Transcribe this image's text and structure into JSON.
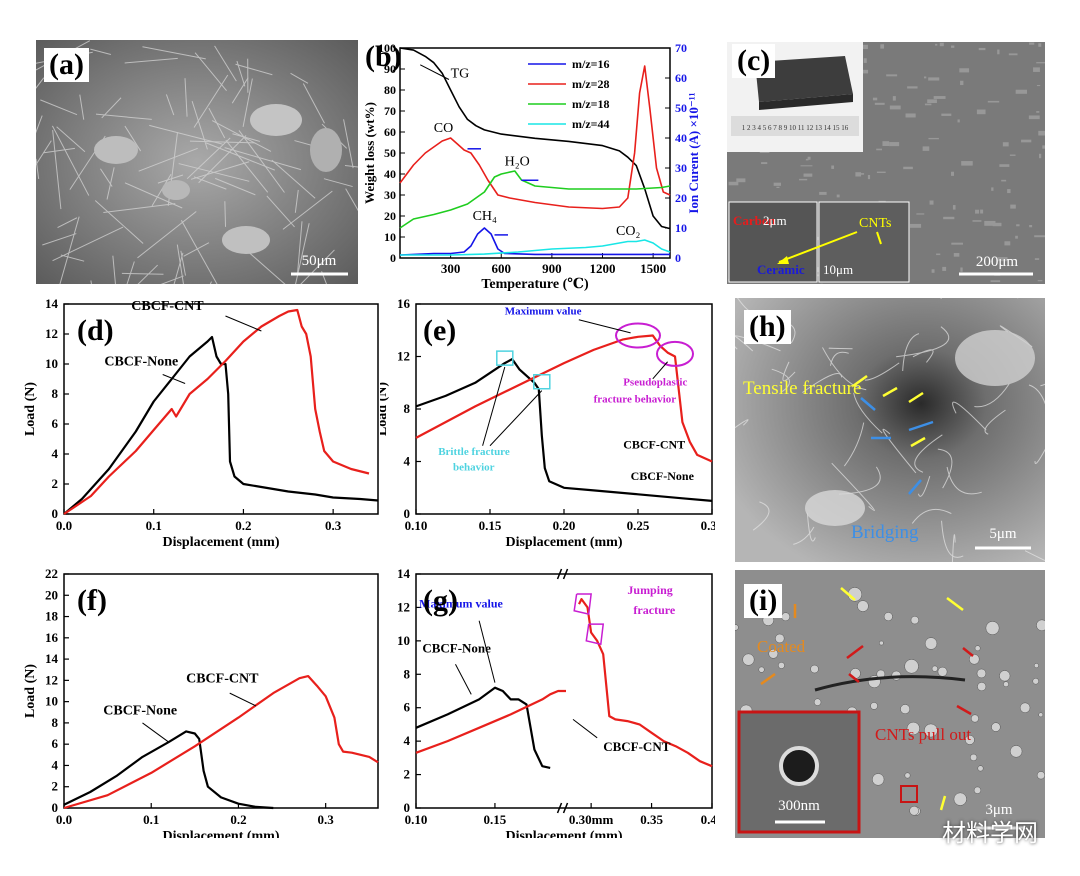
{
  "panels": {
    "a": {
      "label": "(a)",
      "scale": "50μm"
    },
    "b": {
      "label": "(b)"
    },
    "c": {
      "label": "(c)",
      "scale": "200μm",
      "inset_scale_1": "2μm",
      "inset_scale_2": "10μm",
      "ann_carbon": "Carbon",
      "ann_ceramic": "Ceramic",
      "ann_cnts": "CNTs",
      "ruler": "1 2 3 4 5 6 7 8 9 10 11 12 13 14 15 16"
    },
    "d": {
      "label": "(d)"
    },
    "e": {
      "label": "(e)"
    },
    "f": {
      "label": "(f)"
    },
    "g": {
      "label": "(g)"
    },
    "h": {
      "label": "(h)",
      "scale": "5μm",
      "ann_tensile": "Tensile fracture",
      "ann_bridging": "Bridging"
    },
    "i": {
      "label": "(i)",
      "scale": "3μm",
      "inset_scale": "300nm",
      "ann_coated": "Coated",
      "ann_pullout": "CNTs pull out"
    }
  },
  "watermark": "材料学网",
  "colors": {
    "black": "#000000",
    "red": "#e8201c",
    "blue": "#1515e8",
    "green": "#1fcd1f",
    "cyan": "#19e6e6",
    "magenta": "#c81ed2",
    "lightcyan": "#4fd3e0"
  },
  "chart_data": [
    {
      "id": "b",
      "type": "line",
      "xlabel": "Temperature (℃)",
      "ylabel": "Weight loss (wt%)",
      "y2label": "Ion Curent (A) ×10⁻¹¹",
      "xlim": [
        0,
        1600
      ],
      "ylim": [
        0,
        100
      ],
      "y2lim": [
        0,
        70
      ],
      "xticks": [
        300,
        600,
        900,
        1200,
        1500
      ],
      "yticks": [
        0,
        10,
        20,
        30,
        40,
        50,
        60,
        70,
        80,
        90,
        100
      ],
      "y2ticks": [
        0,
        10,
        20,
        30,
        40,
        50,
        60,
        70
      ],
      "legend": [
        "m/z=16",
        "m/z=28",
        "m/z=18",
        "m/z=44"
      ],
      "annotations": {
        "tg": "TG",
        "co": "CO",
        "h2o": "H₂O",
        "ch4": "CH₄",
        "co2": "CO₂"
      },
      "series": [
        {
          "name": "TG",
          "axis": "left",
          "color": "#000000",
          "x": [
            0,
            80,
            150,
            200,
            250,
            300,
            350,
            400,
            450,
            500,
            600,
            800,
            1000,
            1200,
            1300,
            1350,
            1400,
            1450,
            1500,
            1550,
            1600
          ],
          "y": [
            100,
            99,
            96,
            93,
            88,
            80,
            72,
            66,
            63,
            61,
            59,
            57,
            55.5,
            53.5,
            51,
            48,
            44,
            33,
            20,
            15,
            14
          ]
        },
        {
          "name": "m/z=16",
          "axis": "right",
          "color": "#1515e8",
          "x": [
            0,
            200,
            300,
            380,
            420,
            460,
            500,
            540,
            580,
            620,
            800,
            1000,
            1200,
            1400,
            1600
          ],
          "y": [
            1,
            1.5,
            1.5,
            2,
            4,
            8,
            10,
            8,
            3,
            1.5,
            1.2,
            1.2,
            1.2,
            1.2,
            1.2
          ]
        },
        {
          "name": "m/z=28",
          "axis": "right",
          "color": "#e8201c",
          "x": [
            0,
            80,
            150,
            250,
            300,
            340,
            380,
            420,
            470,
            520,
            580,
            650,
            800,
            1000,
            1200,
            1300,
            1350,
            1390,
            1420,
            1450,
            1480,
            1520,
            1560,
            1600
          ],
          "y": [
            25,
            31,
            35,
            39,
            40,
            38,
            36,
            35,
            31,
            26,
            21,
            20,
            18.5,
            17,
            16.5,
            17,
            20,
            35,
            55,
            64,
            50,
            30,
            22,
            21
          ]
        },
        {
          "name": "m/z=18",
          "axis": "right",
          "color": "#1fcd1f",
          "x": [
            0,
            80,
            200,
            300,
            400,
            500,
            560,
            600,
            640,
            680,
            720,
            800,
            1000,
            1200,
            1400,
            1550,
            1600
          ],
          "y": [
            10,
            13,
            14.5,
            16,
            18,
            22,
            27,
            28,
            28.5,
            29,
            26,
            24,
            23,
            23,
            23,
            23.5,
            24
          ]
        },
        {
          "name": "m/z=44",
          "axis": "right",
          "color": "#19e6e6",
          "x": [
            0,
            300,
            500,
            700,
            900,
            1100,
            1200,
            1300,
            1350,
            1400,
            1450,
            1500,
            1550,
            1600
          ],
          "y": [
            1,
            1,
            1.3,
            2,
            3,
            3.5,
            4,
            5,
            5.5,
            5.5,
            6,
            5,
            3,
            2
          ]
        }
      ]
    },
    {
      "id": "d",
      "type": "line",
      "xlabel": "Displacement (mm)",
      "ylabel": "Load (N)",
      "xlim": [
        0,
        0.35
      ],
      "ylim": [
        0,
        14
      ],
      "xticks": [
        0.0,
        0.1,
        0.2,
        0.3
      ],
      "yticks": [
        0,
        2,
        4,
        6,
        8,
        10,
        12,
        14
      ],
      "series_labels": {
        "cnt": "CBCF-CNT",
        "none": "CBCF-None"
      },
      "series": [
        {
          "name": "CBCF-None",
          "color": "#000000",
          "x": [
            0,
            0.02,
            0.05,
            0.08,
            0.1,
            0.12,
            0.14,
            0.16,
            0.165,
            0.17,
            0.175,
            0.18,
            0.183,
            0.185,
            0.19,
            0.2,
            0.22,
            0.25,
            0.28,
            0.3,
            0.33,
            0.35
          ],
          "y": [
            0,
            1,
            3,
            5.5,
            7.5,
            9,
            10.5,
            11.5,
            11.8,
            10.5,
            10,
            10,
            8,
            3.5,
            2.5,
            2,
            1.8,
            1.5,
            1.3,
            1.1,
            1.0,
            0.9
          ]
        },
        {
          "name": "CBCF-CNT",
          "color": "#e8201c",
          "x": [
            0,
            0.03,
            0.05,
            0.08,
            0.1,
            0.12,
            0.125,
            0.14,
            0.16,
            0.18,
            0.2,
            0.22,
            0.24,
            0.25,
            0.26,
            0.265,
            0.27,
            0.275,
            0.28,
            0.285,
            0.29,
            0.3,
            0.32,
            0.34
          ],
          "y": [
            0,
            1.2,
            2.5,
            4.2,
            5.6,
            7,
            6.5,
            8,
            9,
            10.2,
            11.5,
            12.5,
            13.2,
            13.5,
            13.6,
            12.5,
            12,
            10.5,
            7,
            5.5,
            4.2,
            3.5,
            3.0,
            2.7
          ]
        }
      ]
    },
    {
      "id": "e",
      "type": "line",
      "xlabel": "Displacement (mm)",
      "ylabel": "Load (N)",
      "xlim": [
        0.1,
        0.3
      ],
      "ylim": [
        0,
        16
      ],
      "xticks": [
        0.1,
        0.15,
        0.2,
        0.25,
        0.3
      ],
      "yticks": [
        0,
        4,
        8,
        12,
        16
      ],
      "annotations": {
        "max": "Maximum value",
        "pseudo": "Pseudoplastic fracture behavior",
        "brittle": "Brittle fracture behavior",
        "cnt": "CBCF-CNT",
        "none": "CBCF-None"
      },
      "series": [
        {
          "name": "CBCF-None",
          "color": "#000000",
          "x": [
            0.1,
            0.12,
            0.14,
            0.16,
            0.165,
            0.17,
            0.175,
            0.18,
            0.183,
            0.185,
            0.187,
            0.19,
            0.2,
            0.22,
            0.25,
            0.28,
            0.3
          ],
          "y": [
            8.2,
            9,
            10,
            11.5,
            11.8,
            11,
            10.5,
            10,
            9.5,
            6,
            3.5,
            2.5,
            2,
            1.8,
            1.5,
            1.2,
            1.0
          ]
        },
        {
          "name": "CBCF-CNT",
          "color": "#e8201c",
          "x": [
            0.1,
            0.12,
            0.14,
            0.16,
            0.18,
            0.2,
            0.22,
            0.24,
            0.25,
            0.26,
            0.265,
            0.27,
            0.275,
            0.28,
            0.285,
            0.29,
            0.3
          ],
          "y": [
            5.8,
            7,
            8.2,
            9.3,
            10.4,
            11.5,
            12.5,
            13.3,
            13.5,
            13.6,
            12.8,
            12.3,
            12,
            7,
            5.5,
            4.5,
            4.0
          ]
        }
      ]
    },
    {
      "id": "f",
      "type": "line",
      "xlabel": "Displacement (mm)",
      "ylabel": "Load (N)",
      "xlim": [
        0,
        0.36
      ],
      "ylim": [
        0,
        22
      ],
      "xticks": [
        0.0,
        0.1,
        0.2,
        0.3
      ],
      "yticks": [
        0,
        2,
        4,
        6,
        8,
        10,
        12,
        14,
        16,
        18,
        20,
        22
      ],
      "series_labels": {
        "cnt": "CBCF-CNT",
        "none": "CBCF-None"
      },
      "series": [
        {
          "name": "CBCF-None",
          "color": "#000000",
          "x": [
            0,
            0.03,
            0.06,
            0.09,
            0.12,
            0.14,
            0.15,
            0.155,
            0.16,
            0.165,
            0.18,
            0.2,
            0.22,
            0.24
          ],
          "y": [
            0.3,
            1.5,
            3,
            4.8,
            6.2,
            7.2,
            7,
            6.5,
            3.5,
            2,
            1,
            0.4,
            0.1,
            0
          ]
        },
        {
          "name": "CBCF-CNT",
          "color": "#e8201c",
          "x": [
            0,
            0.05,
            0.1,
            0.15,
            0.2,
            0.24,
            0.27,
            0.28,
            0.29,
            0.3,
            0.31,
            0.315,
            0.32,
            0.33,
            0.34,
            0.35,
            0.36
          ],
          "y": [
            0,
            1.2,
            3.3,
            5.8,
            8.5,
            10.8,
            12.2,
            12.4,
            11.5,
            10.5,
            8.5,
            6,
            5.3,
            5.2,
            5,
            4.8,
            4.3
          ]
        }
      ]
    },
    {
      "id": "g",
      "type": "line",
      "xlabel": "Displacement (mm)",
      "ylabel": "",
      "xlim": [
        0.1,
        0.4
      ],
      "ylim": [
        0,
        14
      ],
      "xticks": [
        0.1,
        0.15,
        0.3,
        0.35,
        0.4
      ],
      "xtick_labels": [
        "0.10",
        "0.15",
        "0.30mm",
        "0.35",
        "0.40"
      ],
      "yticks": [
        0,
        2,
        4,
        6,
        8,
        10,
        12,
        14
      ],
      "annotations": {
        "max": "Maximum value",
        "jump": "Jumping fracture",
        "cnt": "CBCF-CNT",
        "none": "CBCF-None"
      },
      "series": [
        {
          "name": "CBCF-None",
          "color": "#000000",
          "x": [
            0.1,
            0.12,
            0.14,
            0.15,
            0.155,
            0.16,
            0.165,
            0.17,
            0.175,
            0.18,
            0.185
          ],
          "y": [
            4.8,
            5.6,
            6.5,
            7.2,
            7.0,
            6.5,
            6.5,
            6.2,
            3.5,
            2.5,
            2.4
          ]
        },
        {
          "name": "CBCF-CNT",
          "color": "#e8201c",
          "x": [
            0.1,
            0.12,
            0.14,
            0.16,
            0.18,
            0.185,
            0.19,
            0.195,
            0.29,
            0.292,
            0.297,
            0.3,
            0.305,
            0.31,
            0.315,
            0.32,
            0.33,
            0.34,
            0.35,
            0.36,
            0.37,
            0.38,
            0.39,
            0.4
          ],
          "y": [
            3.3,
            4,
            4.8,
            5.6,
            6.5,
            6.8,
            7.0,
            7.0,
            12.2,
            12.5,
            12,
            10.5,
            10,
            9.2,
            5.5,
            5.3,
            5.2,
            5,
            4.5,
            4,
            3.7,
            3.3,
            2.8,
            2.5
          ]
        }
      ]
    }
  ]
}
